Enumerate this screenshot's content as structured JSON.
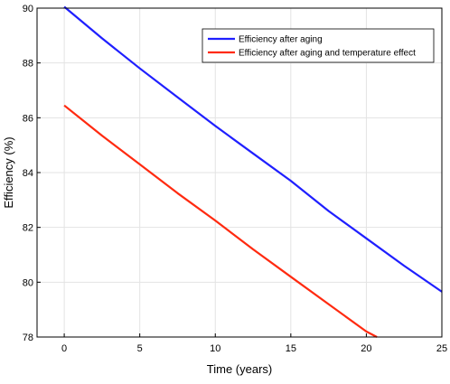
{
  "chart_data": {
    "type": "line",
    "title": "",
    "xlabel": "Time (years)",
    "ylabel": "Efficiency (%)",
    "xlim": [
      -1.8,
      25
    ],
    "ylim": [
      78,
      90
    ],
    "xticks": [
      0,
      5,
      10,
      15,
      20,
      25
    ],
    "yticks": [
      78,
      80,
      82,
      84,
      86,
      88,
      90
    ],
    "grid": true,
    "legend_position": "top-right",
    "series": [
      {
        "name": "Efficiency after aging",
        "color": "#1f1fff",
        "x": [
          0,
          2.5,
          5,
          7.5,
          10,
          12.5,
          15,
          17.5,
          20,
          22.5,
          25
        ],
        "y": [
          90.05,
          88.9,
          87.8,
          86.75,
          85.7,
          84.7,
          83.7,
          82.6,
          81.6,
          80.6,
          79.65
        ]
      },
      {
        "name": "Efficiency after aging and temperature effect",
        "color": "#ff2a10",
        "x": [
          0,
          2.5,
          5,
          7.5,
          10,
          12.5,
          15,
          17.5,
          20,
          20.7
        ],
        "y": [
          86.45,
          85.35,
          84.3,
          83.25,
          82.25,
          81.2,
          80.2,
          79.2,
          78.2,
          78.0
        ]
      }
    ]
  }
}
